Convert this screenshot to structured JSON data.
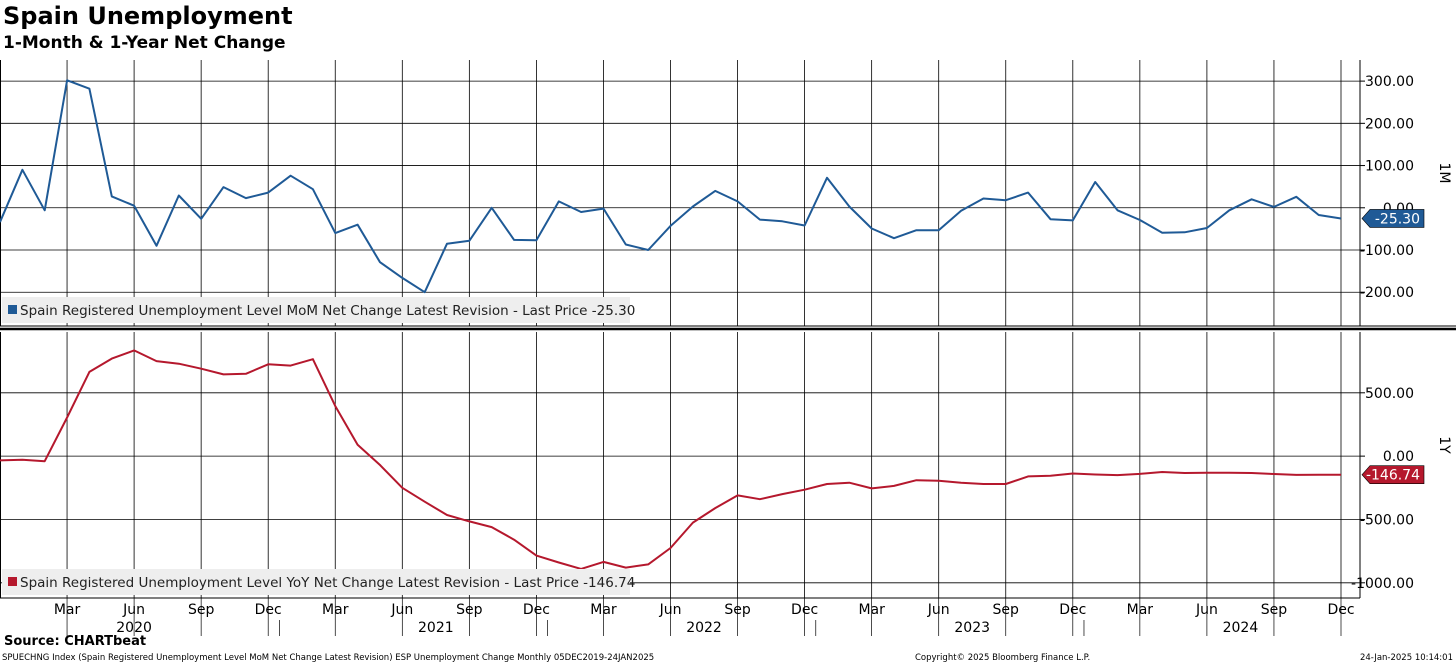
{
  "header": {
    "title": "Spain Unemployment",
    "subtitle": "1-Month & 1-Year Net Change"
  },
  "footer": {
    "source": "Source: CHARTbeat",
    "index_line": "SPUECHNG Index (Spain Registered Unemployment Level MoM Net Change Latest Revision) ESP Unemployment Change  Monthly 05DEC2019-24JAN2025",
    "copyright": "Copyright© 2025 Bloomberg Finance L.P.",
    "timestamp": "24-Jan-2025 10:14:01"
  },
  "colors": {
    "mom_line": "#1f5a96",
    "yoy_line": "#b5182d",
    "grid": "#000000",
    "legend_bg": "#eeeeee"
  },
  "chart_data": [
    {
      "type": "line",
      "panel_label": "1M",
      "legend": "Spain Registered Unemployment Level MoM Net Change Latest Revision - Last Price -25.30",
      "last_price_label": "-25.30",
      "ylim": [
        -280,
        350
      ],
      "yticks": [
        300,
        200,
        100,
        0,
        -100,
        -200
      ],
      "ytick_labels": [
        "300.00",
        "200.00",
        "100.00",
        "0.00",
        "-100.00",
        "-200.00"
      ],
      "grid": true,
      "x": [
        "2019-12",
        "2020-01",
        "2020-02",
        "2020-03",
        "2020-04",
        "2020-05",
        "2020-06",
        "2020-07",
        "2020-08",
        "2020-09",
        "2020-10",
        "2020-11",
        "2020-12",
        "2021-01",
        "2021-02",
        "2021-03",
        "2021-04",
        "2021-05",
        "2021-06",
        "2021-07",
        "2021-08",
        "2021-09",
        "2021-10",
        "2021-11",
        "2021-12",
        "2022-01",
        "2022-02",
        "2022-03",
        "2022-04",
        "2022-05",
        "2022-06",
        "2022-07",
        "2022-08",
        "2022-09",
        "2022-10",
        "2022-11",
        "2022-12",
        "2023-01",
        "2023-02",
        "2023-03",
        "2023-04",
        "2023-05",
        "2023-06",
        "2023-07",
        "2023-08",
        "2023-09",
        "2023-10",
        "2023-11",
        "2023-12",
        "2024-01",
        "2024-02",
        "2024-03",
        "2024-04",
        "2024-05",
        "2024-06",
        "2024-07",
        "2024-08",
        "2024-09",
        "2024-10",
        "2024-11",
        "2024-12"
      ],
      "series": [
        {
          "values": [
            -34,
            90,
            -6,
            302,
            282,
            27,
            5,
            -90,
            29,
            -26,
            49,
            23,
            36,
            76,
            44,
            -60,
            -40,
            -129,
            -166,
            -200,
            -85,
            -78,
            0,
            -76,
            -77,
            15,
            -10,
            -2,
            -87,
            -100,
            -43,
            3,
            40,
            15,
            -28,
            -32,
            -42,
            71,
            3,
            -49,
            -72,
            -53,
            -53,
            -7,
            22,
            18,
            36,
            -27,
            -30,
            61,
            -6,
            -29,
            -59,
            -58,
            -48,
            -6,
            20,
            2,
            26,
            -17,
            -25.3
          ]
        }
      ]
    },
    {
      "type": "line",
      "panel_label": "1Y",
      "legend": "Spain Registered Unemployment Level YoY Net Change Latest Revision - Last Price -146.74",
      "last_price_label": "-146.74",
      "ylim": [
        -1120,
        980
      ],
      "yticks": [
        500,
        0,
        -500,
        -1000
      ],
      "ytick_labels": [
        "500.00",
        "0.00",
        "-500.00",
        "-1000.00"
      ],
      "grid": true,
      "x": [
        "2019-12",
        "2020-01",
        "2020-02",
        "2020-03",
        "2020-04",
        "2020-05",
        "2020-06",
        "2020-07",
        "2020-08",
        "2020-09",
        "2020-10",
        "2020-11",
        "2020-12",
        "2021-01",
        "2021-02",
        "2021-03",
        "2021-04",
        "2021-05",
        "2021-06",
        "2021-07",
        "2021-08",
        "2021-09",
        "2021-10",
        "2021-11",
        "2021-12",
        "2022-01",
        "2022-02",
        "2022-03",
        "2022-04",
        "2022-05",
        "2022-06",
        "2022-07",
        "2022-08",
        "2022-09",
        "2022-10",
        "2022-11",
        "2022-12",
        "2023-01",
        "2023-02",
        "2023-03",
        "2023-04",
        "2023-05",
        "2023-06",
        "2023-07",
        "2023-08",
        "2023-09",
        "2023-10",
        "2023-11",
        "2023-12",
        "2024-01",
        "2024-02",
        "2024-03",
        "2024-04",
        "2024-05",
        "2024-06",
        "2024-07",
        "2024-08",
        "2024-09",
        "2024-10",
        "2024-11",
        "2024-12"
      ],
      "series": [
        {
          "values": [
            -34,
            -28,
            -40,
            305,
            665,
            770,
            835,
            750,
            730,
            690,
            645,
            650,
            725,
            715,
            765,
            395,
            90,
            -70,
            -250,
            -360,
            -465,
            -515,
            -560,
            -660,
            -785,
            -840,
            -890,
            -835,
            -880,
            -855,
            -725,
            -525,
            -410,
            -310,
            -340,
            -300,
            -265,
            -220,
            -210,
            -255,
            -235,
            -190,
            -195,
            -210,
            -220,
            -220,
            -160,
            -155,
            -137,
            -145,
            -150,
            -140,
            -125,
            -133,
            -131,
            -131,
            -133,
            -141,
            -148,
            -147,
            -146.74
          ]
        }
      ]
    }
  ],
  "x_axis": {
    "month_labels": [
      "Mar",
      "Jun",
      "Sep",
      "Dec",
      "Mar",
      "Jun",
      "Sep",
      "Dec",
      "Mar",
      "Jun",
      "Sep",
      "Dec",
      "Mar",
      "Jun",
      "Sep",
      "Dec",
      "Mar",
      "Jun",
      "Sep",
      "Dec"
    ],
    "year_labels": [
      "2020",
      "2021",
      "2022",
      "2023",
      "2024"
    ]
  }
}
